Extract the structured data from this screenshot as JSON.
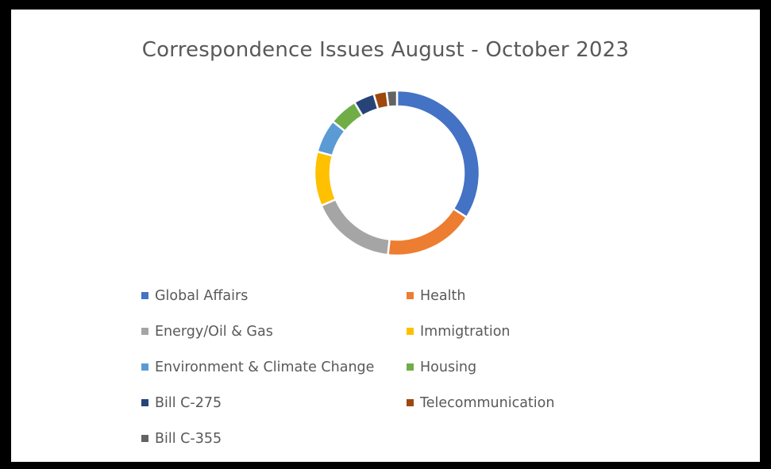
{
  "chart_data": {
    "type": "pie",
    "variant": "donut",
    "title": "Correspondence Issues August - October 2023",
    "legend_position": "bottom",
    "categories": [
      "Global Affairs",
      "Health",
      "Energy/Oil & Gas",
      "Immigtration",
      "Environment & Climate Change",
      "Housing",
      "Bill C-275",
      "Telecommunication",
      "Bill C-355"
    ],
    "values": [
      33.5,
      17.5,
      16.5,
      10.5,
      6.5,
      5.5,
      4.0,
      2.5,
      2.0
    ],
    "colors": [
      "#4472C4",
      "#ED7D31",
      "#A5A5A5",
      "#FFC000",
      "#5B9BD5",
      "#70AD47",
      "#264478",
      "#9E480E",
      "#636363"
    ]
  }
}
